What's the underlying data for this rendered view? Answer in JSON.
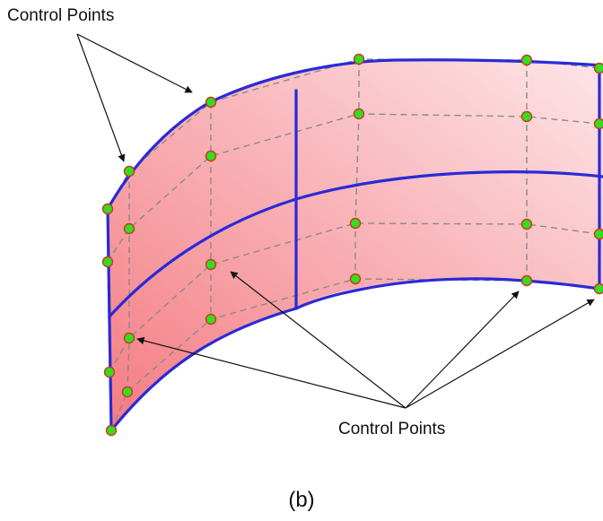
{
  "labels": {
    "top_annotation": "Control Points",
    "bottom_annotation": "Control Points",
    "caption": "(b)"
  },
  "colors": {
    "surface_fill_dark": "#f47c82",
    "surface_fill_light": "#fde5e8",
    "boundary_curves": "#2a2ad6",
    "control_net": "#8a8a8a",
    "control_point_fill": "#33dd22",
    "control_point_stroke": "#c83a1a",
    "arrows": "#111111"
  },
  "figure": {
    "kind": "NURBS surface patch",
    "control_point_count": 28
  }
}
